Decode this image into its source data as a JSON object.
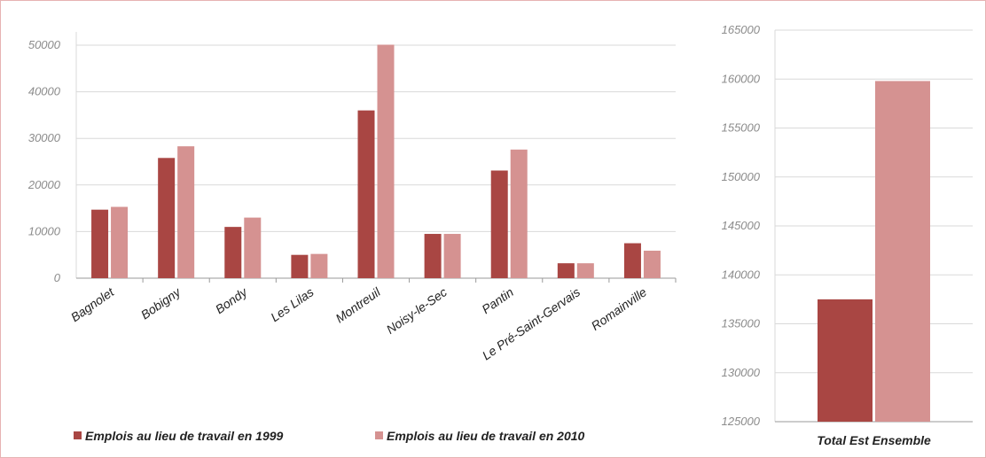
{
  "colors": {
    "series_1999": "#a94643",
    "series_2010": "#d59291",
    "grid": "#d9d9d9",
    "frame": "#e7b3b3"
  },
  "chart_data": [
    {
      "type": "bar",
      "categories": [
        "Bagnolet",
        "Bobigny",
        "Bondy",
        "Les Lilas",
        "Montreuil",
        "Noisy-le-Sec",
        "Pantin",
        "Le Pré-Saint-Gervais",
        "Romainville"
      ],
      "series": [
        {
          "name": "Emplois au lieu de travail en 1999",
          "values": [
            14700,
            25800,
            11000,
            5000,
            36000,
            9500,
            23100,
            3200,
            7500
          ]
        },
        {
          "name": "Emplois au lieu de travail en 2010",
          "values": [
            15300,
            28300,
            13000,
            5200,
            50100,
            9500,
            27600,
            3200,
            5900
          ]
        }
      ],
      "yticks": [
        "0",
        "10000",
        "20000",
        "30000",
        "40000",
        "50000"
      ],
      "ylim": [
        0,
        50000
      ],
      "grid": true,
      "legend": "bottom"
    },
    {
      "type": "bar",
      "categories": [
        "Total Est Ensemble"
      ],
      "series": [
        {
          "name": "Emplois au lieu de travail en 1999",
          "values": [
            137500
          ]
        },
        {
          "name": "Emplois au lieu de travail en 2010",
          "values": [
            159800
          ]
        }
      ],
      "yticks": [
        "125000",
        "130000",
        "135000",
        "140000",
        "145000",
        "150000",
        "155000",
        "160000",
        "165000"
      ],
      "ylim": [
        125000,
        165000
      ],
      "grid": true
    }
  ]
}
